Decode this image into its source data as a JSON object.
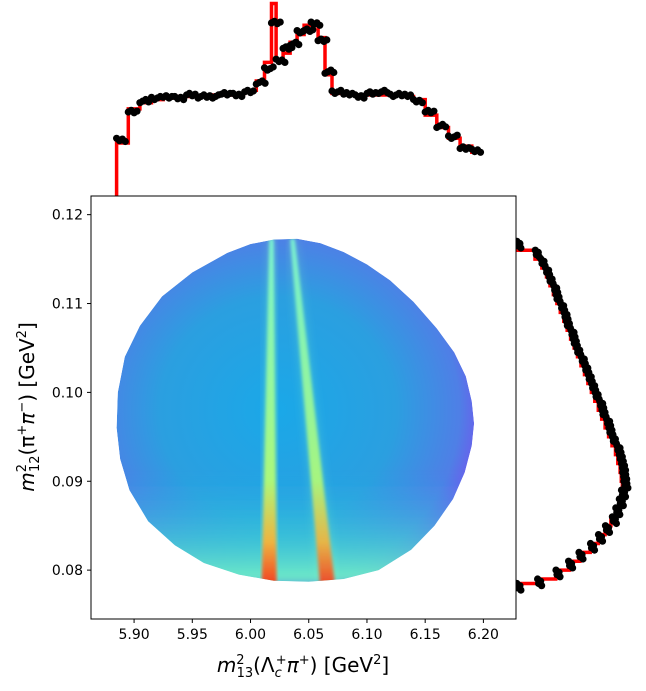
{
  "chart_data": {
    "type": "heatmap",
    "title": "",
    "xlabel_parts": {
      "base": "m",
      "sup": "2",
      "sub": "13",
      "rest_pre": "(Λ",
      "rest_sub": "c",
      "rest_sup": "+",
      "rest_mid": "π",
      "rest_sup2": "+",
      "rest_post": ") [GeV",
      "unit_sup": "2",
      "unit_post": "]"
    },
    "ylabel_parts": {
      "base": "m",
      "sup": "2",
      "sub": "12",
      "rest_pre": "(π",
      "rest_sup": "+",
      "rest_mid": "π",
      "rest_sup2": "−",
      "rest_post": ") [GeV",
      "unit_sup": "2",
      "unit_post": "]"
    },
    "xlim": [
      5.863,
      6.228
    ],
    "ylim": [
      0.0745,
      0.1221
    ],
    "xticks": [
      "5.90",
      "5.95",
      "6.00",
      "6.05",
      "6.10",
      "6.15",
      "6.20"
    ],
    "yticks": [
      "0.08",
      "0.09",
      "0.10",
      "0.11",
      "0.12"
    ],
    "colormap": "rainbow",
    "colors": {
      "model": "#ff0000",
      "data": "#000000"
    },
    "dalitz_boundary": {
      "upper": [
        [
          6.02,
          0.1172
        ],
        [
          6.04,
          0.1173
        ],
        [
          6.06,
          0.1168
        ],
        [
          6.08,
          0.1158
        ],
        [
          6.1,
          0.1144
        ],
        [
          6.12,
          0.1126
        ],
        [
          6.14,
          0.1102
        ],
        [
          6.16,
          0.1072
        ],
        [
          6.175,
          0.1045
        ],
        [
          6.185,
          0.1018
        ],
        [
          6.19,
          0.099
        ],
        [
          6.192,
          0.0965
        ],
        [
          6.19,
          0.094
        ],
        [
          6.184,
          0.091
        ],
        [
          6.174,
          0.088
        ],
        [
          6.158,
          0.085
        ],
        [
          6.138,
          0.0823
        ],
        [
          6.11,
          0.08
        ],
        [
          6.08,
          0.079
        ],
        [
          6.05,
          0.0787
        ],
        [
          6.02,
          0.0788
        ],
        [
          5.99,
          0.0795
        ],
        [
          5.96,
          0.0808
        ],
        [
          5.935,
          0.0828
        ],
        [
          5.912,
          0.0855
        ],
        [
          5.896,
          0.089
        ],
        [
          5.888,
          0.0925
        ],
        [
          5.885,
          0.096
        ],
        [
          5.886,
          0.1
        ],
        [
          5.892,
          0.104
        ],
        [
          5.905,
          0.1075
        ],
        [
          5.924,
          0.1108
        ],
        [
          5.95,
          0.1135
        ],
        [
          5.98,
          0.1157
        ],
        [
          6.0,
          0.1167
        ]
      ]
    },
    "resonance_bands": [
      {
        "x": 6.018,
        "width": 0.004,
        "intensity": 0.9
      },
      {
        "x": 6.036,
        "width": 0.004,
        "intensity": 0.85
      }
    ],
    "x_projection": {
      "x": [
        5.885,
        5.895,
        5.905,
        5.915,
        5.925,
        5.935,
        5.945,
        5.955,
        5.965,
        5.975,
        5.985,
        5.995,
        6.005,
        6.012,
        6.018,
        6.022,
        6.028,
        6.034,
        6.04,
        6.046,
        6.052,
        6.058,
        6.064,
        6.07,
        6.08,
        6.09,
        6.1,
        6.11,
        6.12,
        6.13,
        6.14,
        6.15,
        6.16,
        6.17,
        6.18,
        6.19
      ],
      "model": [
        40,
        62,
        66,
        68,
        69,
        70,
        70,
        70,
        71,
        71,
        72,
        74,
        80,
        92,
        130,
        94,
        98,
        105,
        110,
        116,
        118,
        108,
        84,
        72,
        71,
        71,
        71,
        71,
        71,
        70,
        68,
        58,
        50,
        43,
        38,
        34
      ],
      "data": [
        42,
        60,
        67,
        69,
        70,
        69,
        71,
        70,
        70,
        72,
        71,
        73,
        79,
        88,
        118,
        93,
        101,
        104,
        112,
        113,
        117,
        106,
        86,
        73,
        72,
        70,
        72,
        73,
        71,
        71,
        67,
        60,
        51,
        44,
        37,
        35
      ]
    },
    "y_projection": {
      "y": [
        0.117,
        0.116,
        0.115,
        0.114,
        0.113,
        0.112,
        0.111,
        0.11,
        0.109,
        0.108,
        0.107,
        0.106,
        0.105,
        0.104,
        0.103,
        0.102,
        0.101,
        0.1,
        0.099,
        0.098,
        0.097,
        0.096,
        0.095,
        0.094,
        0.093,
        0.092,
        0.091,
        0.09,
        0.089,
        0.088,
        0.087,
        0.086,
        0.085,
        0.084,
        0.083,
        0.082,
        0.081,
        0.08,
        0.079,
        0.0785
      ],
      "model": [
        5,
        20,
        26,
        30,
        33,
        36,
        39,
        42,
        45,
        48,
        51,
        54,
        57,
        60,
        63,
        66,
        69,
        72,
        75,
        78,
        81,
        84,
        87,
        90,
        92,
        94,
        95,
        96,
        95,
        93,
        90,
        86,
        81,
        75,
        68,
        59,
        50,
        38,
        22,
        5
      ],
      "data": [
        6,
        22,
        27,
        31,
        34,
        38,
        40,
        44,
        47,
        49,
        53,
        55,
        58,
        62,
        65,
        68,
        71,
        74,
        78,
        80,
        84,
        86,
        89,
        93,
        95,
        97,
        98,
        99,
        97,
        95,
        92,
        89,
        83,
        77,
        70,
        60,
        51,
        40,
        24,
        6
      ]
    }
  }
}
